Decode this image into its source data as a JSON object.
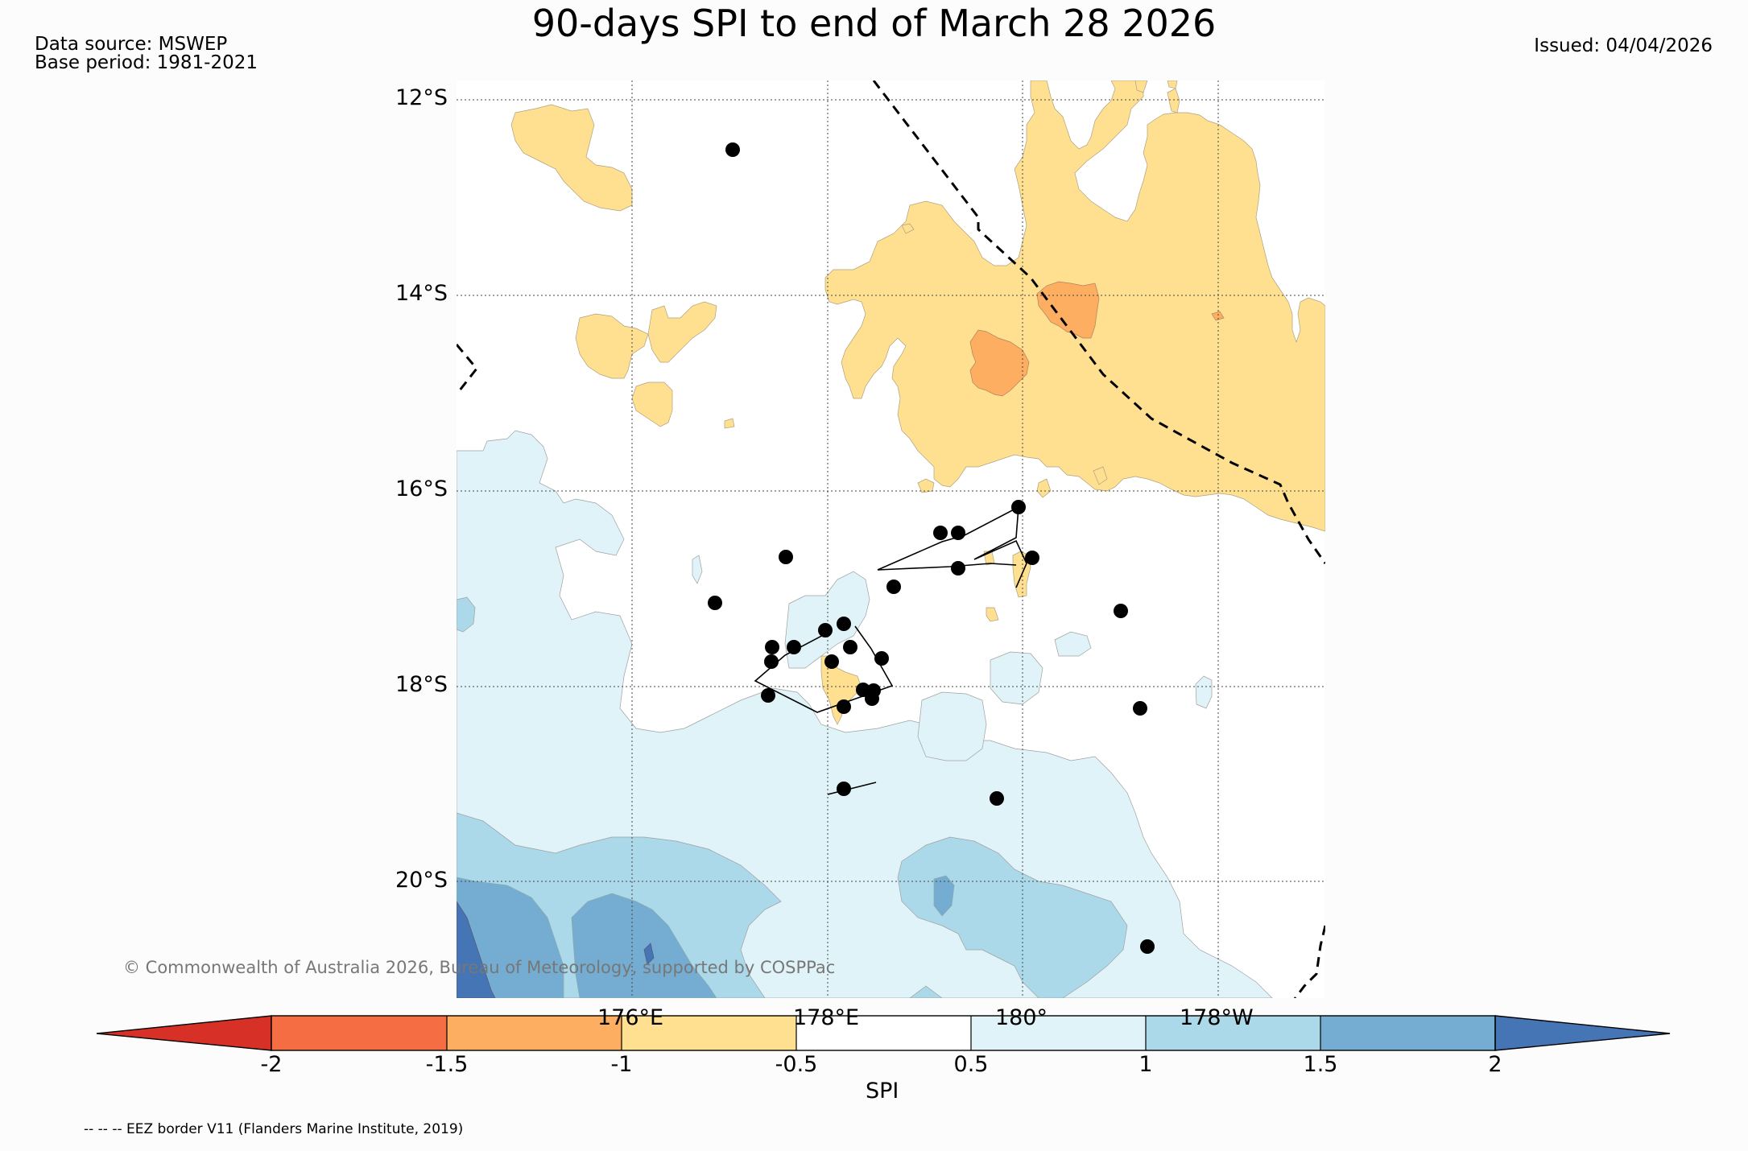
{
  "header": {
    "title": "90-days SPI to end of March 28 2026",
    "data_source": "Data source: MSWEP",
    "base_period": "Base period: 1981-2021",
    "issued": "Issued: 04/04/2026"
  },
  "map": {
    "lat_labels": [
      "12°S",
      "14°S",
      "16°S",
      "18°S",
      "20°S"
    ],
    "lon_labels": [
      "176°E",
      "178°E",
      "180°",
      "178°W"
    ],
    "copyright": "© Commonwealth of Australia 2026, Bureau of Meteorology, supported by COSPPac",
    "eez_legend": "-- -- -- EEZ border V11 (Flanders Marine Institute, 2019)"
  },
  "colorbar": {
    "label": "SPI",
    "ticks": [
      "-2",
      "-1.5",
      "-1",
      "-0.5",
      "0.5",
      "1",
      "1.5",
      "2"
    ],
    "colors": {
      "lt_-2": "#d73027",
      "-2_-1.5": "#f46d43",
      "-1.5_-1": "#fdae61",
      "-1_-0.5": "#fee090",
      "-0.5_0.5": "#ffffff",
      "0.5_1": "#e0f3f8",
      "1_1.5": "#abd9e9",
      "1.5_2": "#74add1",
      "gt_2": "#4575b4"
    }
  }
}
